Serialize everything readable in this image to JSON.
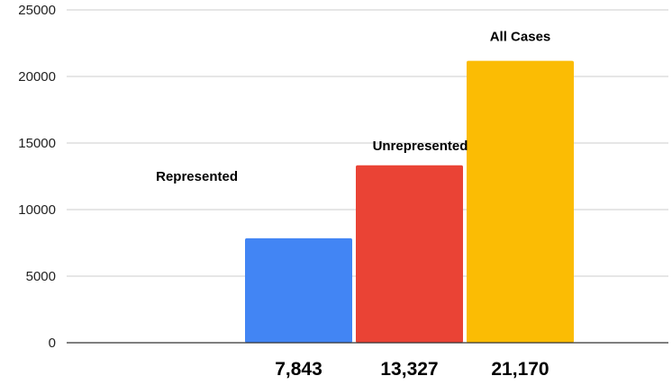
{
  "chart_data": {
    "type": "bar",
    "categories": [
      "7,843",
      "13,327",
      "21,170"
    ],
    "values": [
      7843,
      13327,
      21170
    ],
    "bar_labels": [
      "Represented",
      "Unrepresented",
      "All Cases"
    ],
    "bar_colors": [
      "#4285f4",
      "#ea4335",
      "#fbbc04"
    ],
    "title": "",
    "xlabel": "",
    "ylabel": "",
    "ylim": [
      0,
      25000
    ],
    "yticks": [
      0,
      5000,
      10000,
      15000,
      20000,
      25000
    ],
    "grid": true,
    "legend": "none"
  }
}
